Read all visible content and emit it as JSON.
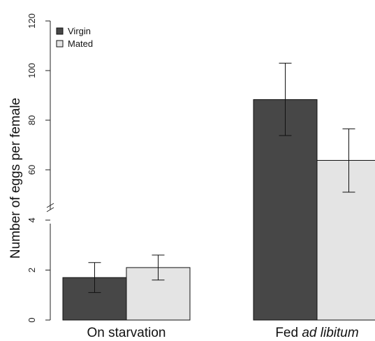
{
  "chart_data": {
    "type": "bar",
    "ylabel": "Number of eggs per female",
    "broken_axis": true,
    "lower_segment": {
      "ylim": [
        0,
        4
      ],
      "ticks": [
        0,
        2,
        4
      ]
    },
    "upper_segment": {
      "ylim": [
        50,
        120
      ],
      "ticks": [
        60,
        80,
        100,
        120
      ]
    },
    "categories": [
      {
        "id": "starvation",
        "label": "On starvation",
        "label_italic": ""
      },
      {
        "id": "fed",
        "label": "Fed ",
        "label_italic": "ad libitum"
      }
    ],
    "series": [
      {
        "name": "Virgin",
        "color": "#474747",
        "values": [
          1.7,
          88.3
        ],
        "err_low": [
          1.1,
          73.8
        ],
        "err_high": [
          2.3,
          103.0
        ]
      },
      {
        "name": "Mated",
        "color": "#e4e4e4",
        "values": [
          2.1,
          63.8
        ],
        "err_low": [
          1.6,
          51.0
        ],
        "err_high": [
          2.6,
          76.5
        ]
      }
    ],
    "legend": {
      "position": "top-left"
    },
    "grid": false
  }
}
